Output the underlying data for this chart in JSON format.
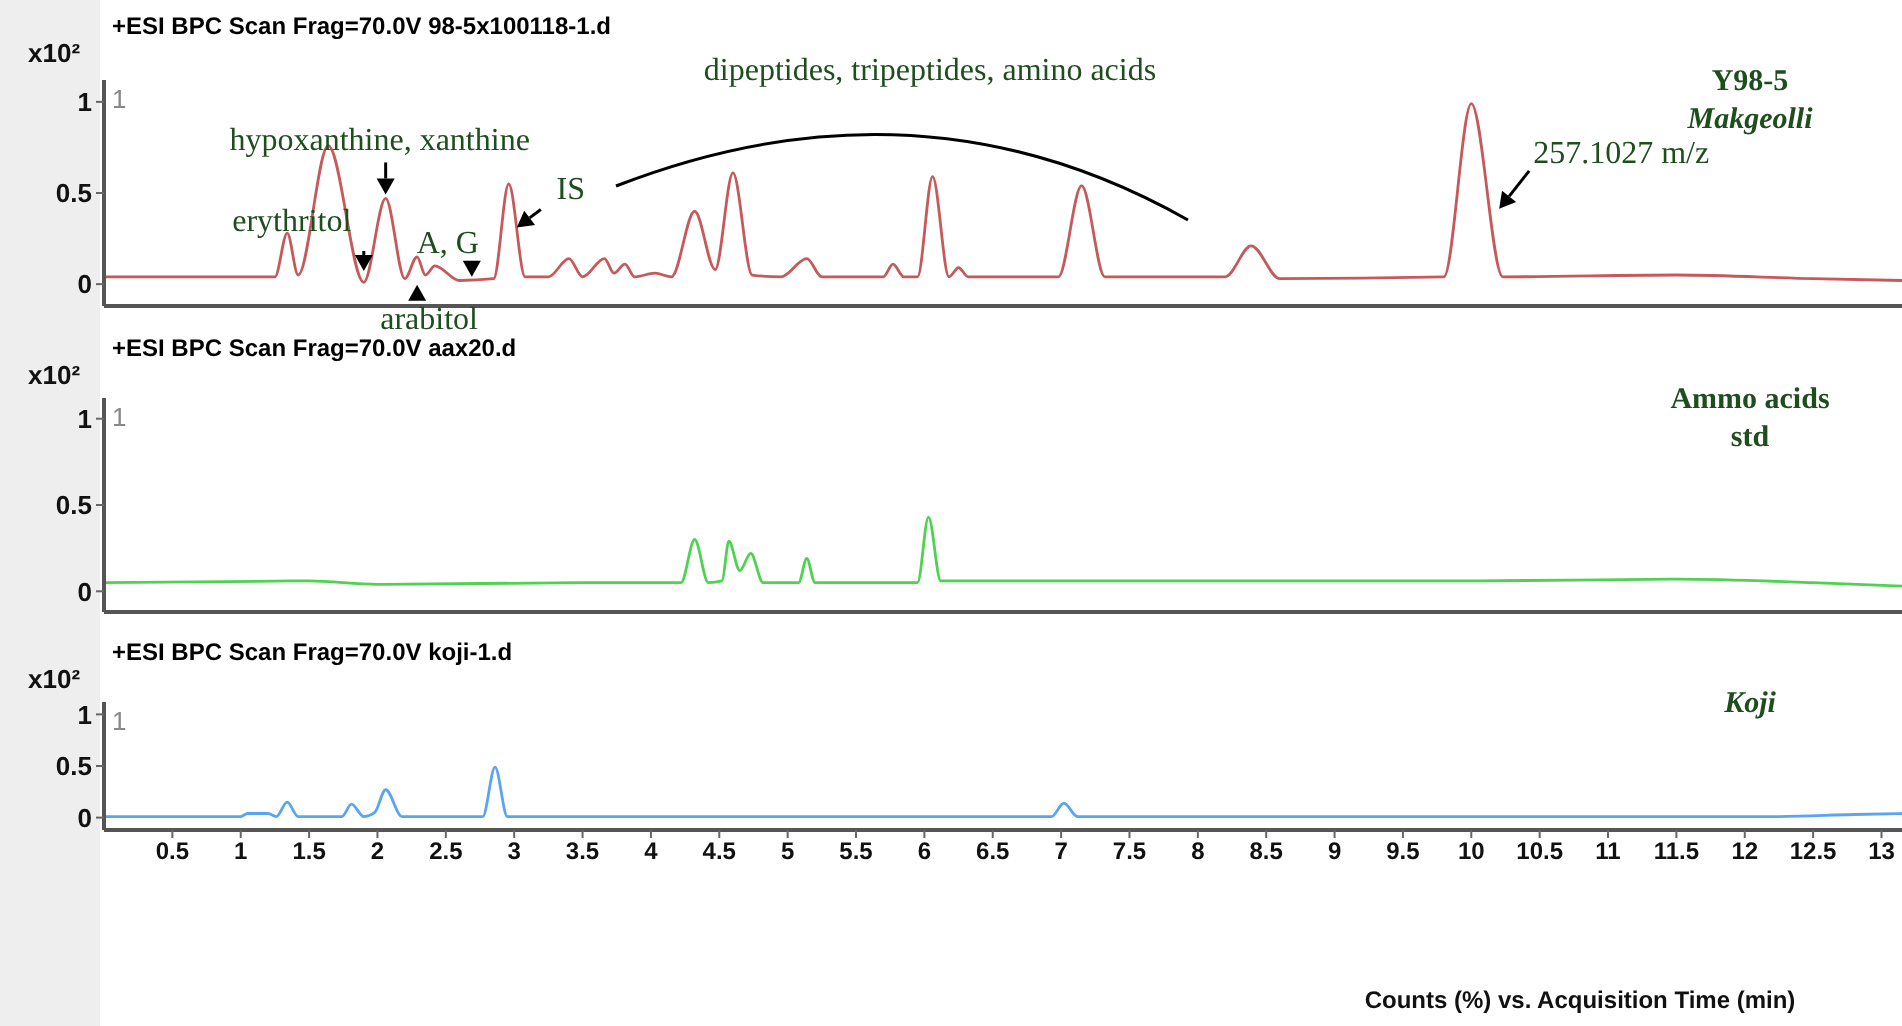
{
  "chart_data": [
    {
      "type": "line",
      "title": "+ESI BPC Scan Frag=70.0V 98-5x100118-1.d",
      "subtitle": "Y98-5",
      "ylabel": "x10²",
      "xlim": [
        0,
        13.15
      ],
      "ylim": [
        -0.12,
        1.12
      ],
      "yticks": [
        0,
        0.5,
        1
      ],
      "xticks": [
        0.5,
        1,
        1.5,
        2,
        2.5,
        3,
        3.5,
        4,
        4.5,
        5,
        5.5,
        6,
        6.5,
        7,
        7.5,
        8,
        8.5,
        9,
        9.5,
        10,
        10.5,
        11,
        11.5,
        12,
        12.5,
        13
      ],
      "tick_labels": "y",
      "x": [
        0,
        1.25,
        1.34,
        1.42,
        1.64,
        1.9,
        2.06,
        2.2,
        2.29,
        2.35,
        2.42,
        2.6,
        2.85,
        2.96,
        3.08,
        3.25,
        3.4,
        3.5,
        3.66,
        3.73,
        3.81,
        3.88,
        4.03,
        4.15,
        4.32,
        4.47,
        4.6,
        4.74,
        4.95,
        5.14,
        5.25,
        5.7,
        5.77,
        5.85,
        5.95,
        6.06,
        6.18,
        6.25,
        6.32,
        6.98,
        7.15,
        7.32,
        8.2,
        8.39,
        8.6,
        9.8,
        10.0,
        10.23,
        11.5,
        12.5,
        13.15
      ],
      "series": [
        {
          "color": "#c65a5a",
          "values": [
            0.04,
            0.04,
            0.28,
            0.05,
            0.76,
            0.01,
            0.47,
            0.03,
            0.15,
            0.05,
            0.1,
            0.02,
            0.03,
            0.55,
            0.04,
            0.04,
            0.14,
            0.04,
            0.14,
            0.06,
            0.11,
            0.04,
            0.06,
            0.04,
            0.4,
            0.08,
            0.61,
            0.05,
            0.04,
            0.14,
            0.04,
            0.04,
            0.11,
            0.04,
            0.04,
            0.59,
            0.04,
            0.09,
            0.04,
            0.04,
            0.54,
            0.04,
            0.04,
            0.21,
            0.03,
            0.04,
            0.99,
            0.04,
            0.05,
            0.03,
            0.02
          ]
        }
      ],
      "annotations": [
        "1",
        {
          "text": "erythritol",
          "x": 1.9,
          "y": 0.05
        },
        {
          "text": "hypoxanthine, xanthine",
          "x": 2.06,
          "y": 0.47
        },
        {
          "text": "arabitol",
          "x": 2.29,
          "y": 0.15
        },
        {
          "text": "A, G",
          "x": 2.69,
          "y": 0.03
        },
        {
          "text": "IS",
          "x": 2.99,
          "y": 0.3
        },
        "dipeptides, tripeptides, amino acids",
        {
          "text": "257.1027 m/z",
          "x": 10.16,
          "y": 0.38
        },
        "Makgeolli"
      ]
    },
    {
      "type": "line",
      "title": "+ESI BPC Scan Frag=70.0V aax20.d",
      "subtitle": "Ammo acids std",
      "ylabel": "x10²",
      "xlim": [
        0,
        13.15
      ],
      "ylim": [
        -0.12,
        1.12
      ],
      "yticks": [
        0,
        0.5,
        1
      ],
      "xticks": [
        0.5,
        1,
        1.5,
        2,
        2.5,
        3,
        3.5,
        4,
        4.5,
        5,
        5.5,
        6,
        6.5,
        7,
        7.5,
        8,
        8.5,
        9,
        9.5,
        10,
        10.5,
        11,
        11.5,
        12,
        12.5,
        13
      ],
      "tick_labels": "y",
      "x": [
        0,
        1.5,
        2.0,
        3.5,
        4.22,
        4.32,
        4.42,
        4.52,
        4.57,
        4.65,
        4.73,
        4.82,
        5.08,
        5.14,
        5.2,
        5.95,
        6.03,
        6.12,
        8,
        10,
        11.5,
        12.5,
        13.15
      ],
      "series": [
        {
          "color": "#4fd24f",
          "values": [
            0.05,
            0.06,
            0.04,
            0.05,
            0.05,
            0.3,
            0.05,
            0.06,
            0.29,
            0.12,
            0.22,
            0.05,
            0.05,
            0.19,
            0.05,
            0.05,
            0.43,
            0.06,
            0.06,
            0.06,
            0.07,
            0.05,
            0.03
          ]
        }
      ],
      "annotations": [
        "1"
      ]
    },
    {
      "type": "line",
      "title": "+ESI BPC Scan Frag=70.0V koji-1.d",
      "ylabel": "x10²",
      "xlabel": "Counts (%) vs. Acquisition Time (min)",
      "xlim": [
        0,
        13.15
      ],
      "ylim": [
        -0.12,
        1.12
      ],
      "yticks": [
        0,
        0.5,
        1
      ],
      "xticks": [
        0.5,
        1,
        1.5,
        2,
        2.5,
        3,
        3.5,
        4,
        4.5,
        5,
        5.5,
        6,
        6.5,
        7,
        7.5,
        8,
        8.5,
        9,
        9.5,
        10,
        10.5,
        11,
        11.5,
        12,
        12.5,
        13
      ],
      "x": [
        0,
        1.0,
        1.05,
        1.2,
        1.26,
        1.34,
        1.42,
        1.74,
        1.81,
        1.9,
        1.98,
        2.06,
        2.18,
        2.77,
        2.86,
        2.95,
        6.93,
        7.02,
        7.12,
        12.2,
        12.8,
        13.15
      ],
      "series": [
        {
          "color": "#5aa5f0",
          "values": [
            0.01,
            0.01,
            0.04,
            0.04,
            0.01,
            0.15,
            0.01,
            0.01,
            0.13,
            0.01,
            0.05,
            0.27,
            0.01,
            0.01,
            0.49,
            0.01,
            0.01,
            0.14,
            0.01,
            0.01,
            0.03,
            0.04
          ]
        }
      ],
      "annotations": [
        "1",
        "Koji"
      ]
    }
  ]
}
